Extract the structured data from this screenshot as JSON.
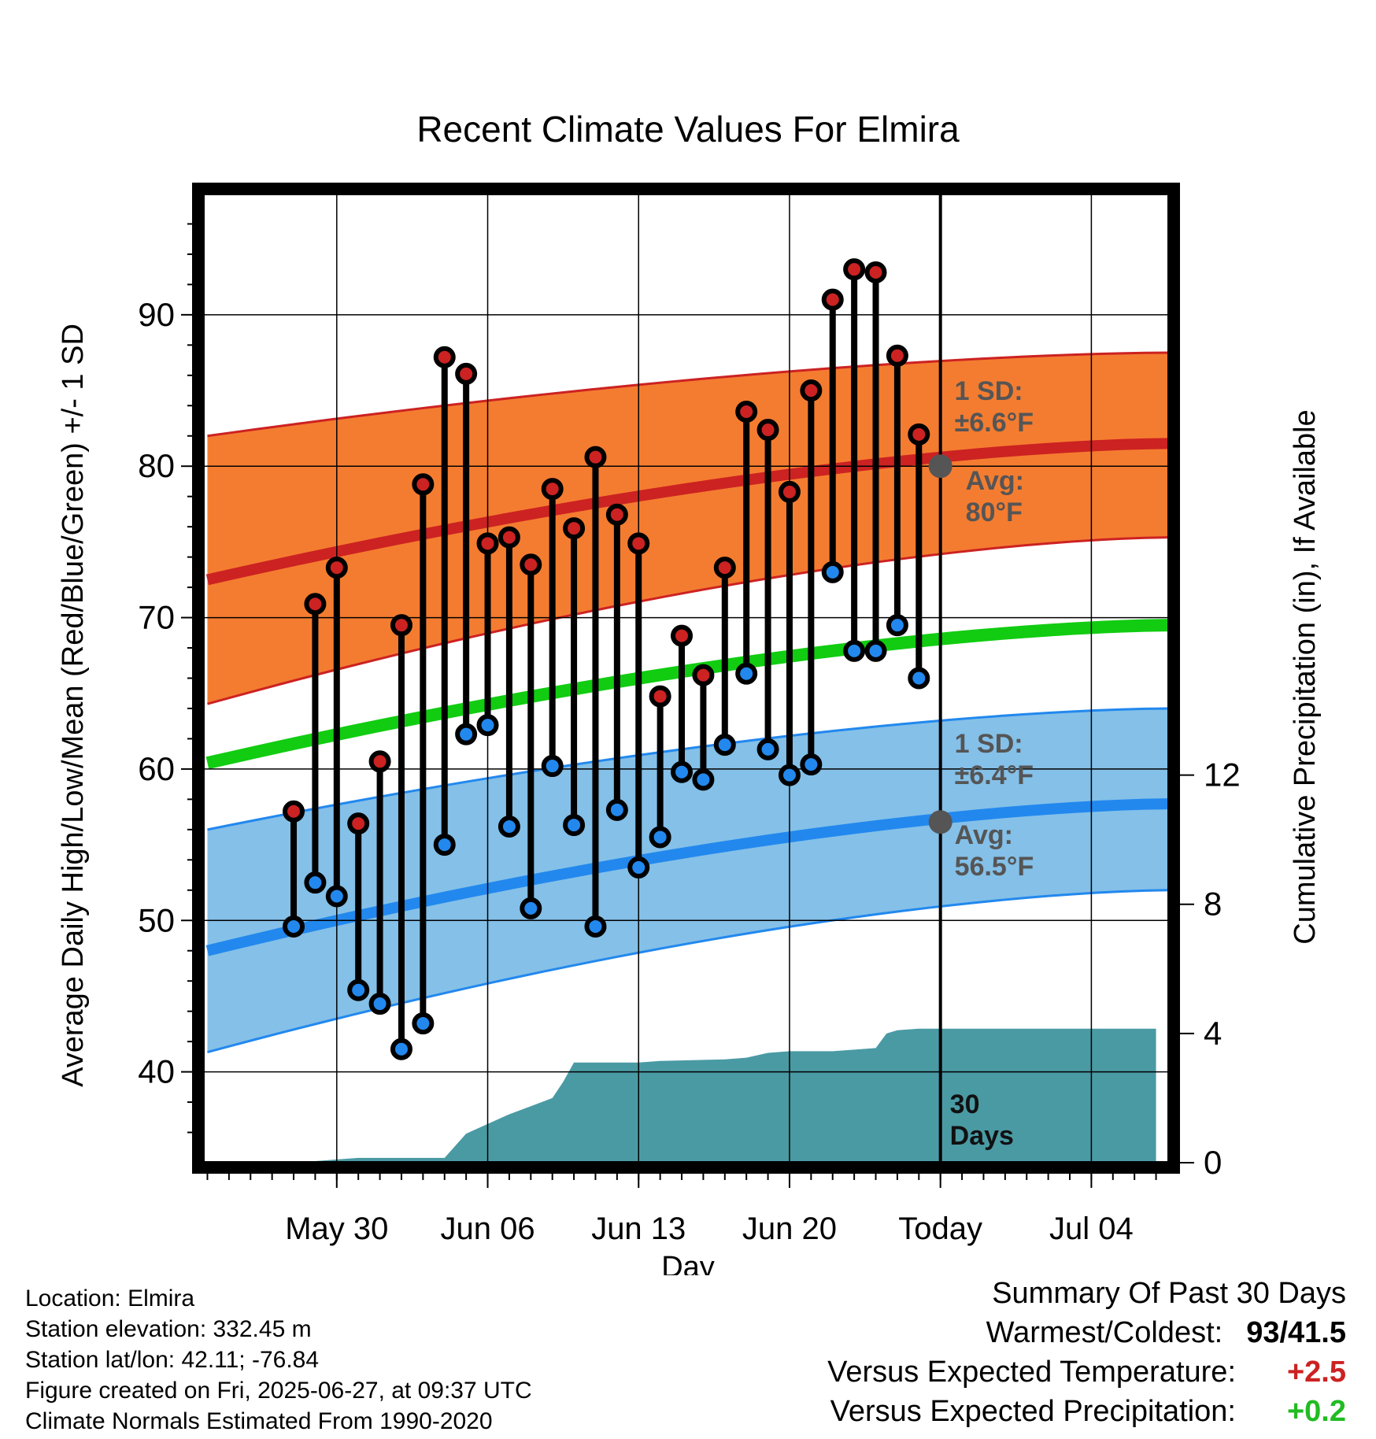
{
  "chart_data": {
    "type": "line",
    "title": "Recent Climate Values For Elmira",
    "xlabel": "Day",
    "ylabel": "Average Daily High/Low/Mean (Red/Blue/Green) +/- 1 SD",
    "y2label": "Cumulative Precipitation (in), If Available",
    "ylim": [
      34,
      98
    ],
    "y2lim": [
      0,
      30
    ],
    "y_ticks": [
      40,
      50,
      60,
      70,
      80,
      90
    ],
    "y2_ticks": [
      0,
      4,
      8,
      12
    ],
    "x_range_days": [
      -34.2,
      10.6
    ],
    "x_ticks": [
      {
        "day": -28,
        "label": "May 30"
      },
      {
        "day": -21,
        "label": "Jun 06"
      },
      {
        "day": -14,
        "label": "Jun 13"
      },
      {
        "day": -7,
        "label": "Jun 20"
      },
      {
        "day": 0,
        "label": "Today"
      },
      {
        "day": 7,
        "label": "Jul 04"
      }
    ],
    "days_offset": [
      -30,
      -29,
      -28,
      -27,
      -26,
      -25,
      -24,
      -23,
      -22,
      -21,
      -20,
      -19,
      -18,
      -17,
      -16,
      -15,
      -14,
      -13,
      -12,
      -11,
      -10,
      -9,
      -8,
      -7,
      -6,
      -5,
      -4,
      -3,
      -2,
      -1
    ],
    "series": [
      {
        "name": "High",
        "color": "#cc2222",
        "values": [
          57.2,
          70.9,
          73.3,
          56.4,
          60.5,
          69.5,
          78.8,
          87.2,
          86.1,
          74.9,
          75.3,
          73.5,
          78.5,
          75.9,
          80.6,
          76.8,
          74.9,
          64.8,
          68.8,
          66.2,
          73.3,
          83.6,
          82.4,
          78.3,
          85.0,
          91.0,
          93.0,
          92.8,
          87.3,
          82.1
        ]
      },
      {
        "name": "Low",
        "color": "#2288ee",
        "values": [
          49.6,
          52.5,
          51.6,
          45.4,
          44.5,
          41.5,
          43.2,
          55.0,
          62.3,
          62.9,
          56.2,
          50.8,
          60.2,
          56.3,
          49.6,
          57.3,
          53.5,
          55.5,
          59.8,
          59.3,
          61.6,
          66.3,
          61.3,
          59.6,
          60.3,
          73.0,
          67.8,
          67.8,
          69.5,
          66.0
        ]
      }
    ],
    "normals": {
      "days": [
        -34,
        10.6
      ],
      "high": [
        72.5,
        81.5
      ],
      "high_sd_upper": [
        82.0,
        87.5
      ],
      "high_sd_lower": [
        64.3,
        75.3
      ],
      "mean": [
        60.4,
        69.5
      ],
      "low": [
        48.0,
        57.7
      ],
      "low_sd_upper": [
        56.0,
        64.0
      ],
      "low_sd_lower": [
        41.3,
        52.0
      ]
    },
    "precip_cumulative": {
      "days": [
        -31,
        -29,
        -28,
        -27,
        -23,
        -22,
        -21,
        -20,
        -19,
        -18,
        -17.5,
        -17,
        -14,
        -13,
        -10,
        -9,
        -8,
        -7,
        -6,
        -5,
        -4,
        -3,
        -2.5,
        -2,
        -1,
        0,
        10
      ],
      "values": [
        0,
        0.05,
        0.1,
        0.15,
        0.15,
        0.9,
        1.2,
        1.5,
        1.75,
        2.0,
        2.5,
        3.1,
        3.1,
        3.15,
        3.2,
        3.25,
        3.4,
        3.45,
        3.45,
        3.45,
        3.5,
        3.55,
        4.0,
        4.1,
        4.15,
        4.15,
        4.15
      ]
    },
    "annotations": [
      {
        "text_lines": [
          "1 SD:",
          "±6.6°F"
        ],
        "target": "high"
      },
      {
        "text_lines": [
          "Avg:",
          "80°F"
        ],
        "value": 80,
        "target": "high"
      },
      {
        "text_lines": [
          "1 SD:",
          "±6.4°F"
        ],
        "target": "low"
      },
      {
        "text_lines": [
          "Avg:",
          "56.5°F"
        ],
        "value": 56.5,
        "target": "low"
      },
      {
        "text_lines": [
          "30",
          "Days"
        ],
        "target": "today"
      }
    ],
    "grid": true,
    "legend": "none"
  },
  "footer": {
    "location": "Location: Elmira",
    "elevation": "Station elevation: 332.45 m",
    "latlon": "Station lat/lon: 42.11; -76.84",
    "created": "Figure created on Fri, 2025-06-27, at 09:37 UTC",
    "normals": "Climate Normals Estimated From 1990-2020"
  },
  "summary": {
    "title": "Summary Of Past 30 Days",
    "warm_cold_label": "Warmest/Coldest:",
    "warm_cold_value": "93/41.5",
    "temp_label": "Versus Expected Temperature:",
    "temp_value": "+2.5",
    "temp_color": "#cc2222",
    "precip_label": "Versus Expected Precipitation:",
    "precip_value": "+0.2",
    "precip_color": "#22bb22"
  }
}
